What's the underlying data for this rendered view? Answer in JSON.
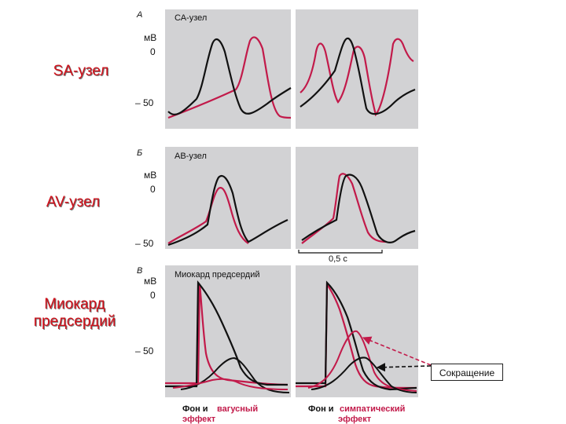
{
  "labels": {
    "sa_node": "SA-узел",
    "av_node": "AV-узел",
    "atrial_line1": "Миокард",
    "atrial_line2": "предсердий",
    "contraction": "Сокращение"
  },
  "figure": {
    "panel_a": {
      "letter": "А",
      "title": "СА-узел",
      "unit": "мВ",
      "tick_zero": "0",
      "tick_minus50": "– 50"
    },
    "panel_b": {
      "letter": "Б",
      "title": "АВ-узел",
      "unit": "мВ",
      "tick_zero": "0",
      "tick_minus50": "– 50",
      "scale_bar": "0,5 с"
    },
    "panel_c": {
      "letter": "В",
      "title": "Миокард предсердий",
      "unit": "мВ",
      "tick_zero": "0",
      "tick_minus50": "– 50"
    },
    "caption_left": {
      "prefix": "Фон и",
      "colored_line1": "вагусный",
      "colored_line2": "эффект"
    },
    "caption_right": {
      "prefix": "Фон и",
      "colored_line1": "симпатический",
      "colored_line2": "эффект"
    }
  },
  "colors": {
    "background_trace": "#111111",
    "effect_trace": "#c21a4a",
    "panel_fill": "#d2d2d4",
    "label_red": "#d0101a"
  }
}
